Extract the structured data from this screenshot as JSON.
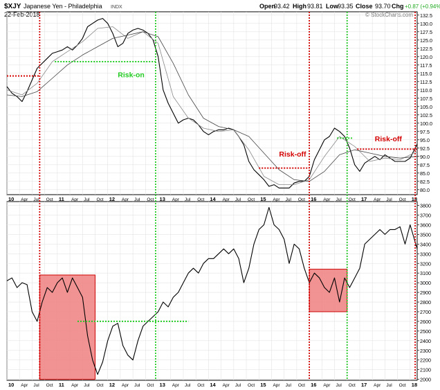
{
  "header": {
    "symbol": "$XJY",
    "name": "Japanese Yen - Philadelphia",
    "exchange": "INDX",
    "date": "22-Feb-2018",
    "open_label": "Open",
    "open": "93.42",
    "high_label": "High",
    "high": "93.81",
    "low_label": "Low",
    "low": "93.35",
    "close_label": "Close",
    "close": "93.70",
    "chg_label": "Chg",
    "chg": "+0.87 (+0.94%)",
    "watermark": "© StockCharts.com"
  },
  "colors": {
    "price": "#000000",
    "ma_short": "#888888",
    "ma_long": "#444444",
    "red_dotted": "#d40000",
    "green_dotted": "#22cc22",
    "shade_fill": "#f08080",
    "shade_stroke": "#cc0000",
    "annotation_green": "#22cc22",
    "annotation_red": "#d40000"
  },
  "chart_data": [
    {
      "type": "line",
      "panel": "top",
      "x_ticks": [
        "10",
        "Apr",
        "Jul",
        "Oct",
        "11",
        "Apr",
        "Jul",
        "Oct",
        "12",
        "Apr",
        "Jul",
        "Oct",
        "13",
        "Apr",
        "Jul",
        "Oct",
        "14",
        "Apr",
        "Jul",
        "Oct",
        "15",
        "Apr",
        "Jul",
        "Oct",
        "16",
        "Apr",
        "Jul",
        "Oct",
        "17",
        "Apr",
        "Jul",
        "Oct",
        "18"
      ],
      "y_ticks": [
        "132.5",
        "130.0",
        "127.5",
        "125.0",
        "122.5",
        "120.0",
        "117.5",
        "115.0",
        "112.5",
        "110.0",
        "107.5",
        "105.0",
        "102.5",
        "100.0",
        "97.5",
        "95.0",
        "92.5",
        "90.0",
        "87.5",
        "85.0",
        "82.5",
        "80.0"
      ],
      "ylim": [
        78.5,
        133.5
      ],
      "xlim": [
        2010.0,
        2018.14
      ],
      "series": [
        {
          "role": "price",
          "x": [
            2010.0,
            2010.1,
            2010.2,
            2010.3,
            2010.4,
            2010.5,
            2010.6,
            2010.7,
            2010.8,
            2010.9,
            2011.0,
            2011.1,
            2011.2,
            2011.3,
            2011.4,
            2011.5,
            2011.6,
            2011.7,
            2011.8,
            2011.9,
            2012.0,
            2012.1,
            2012.2,
            2012.3,
            2012.4,
            2012.5,
            2012.6,
            2012.7,
            2012.8,
            2012.9,
            2013.0,
            2013.1,
            2013.2,
            2013.3,
            2013.4,
            2013.5,
            2013.6,
            2013.7,
            2013.8,
            2013.9,
            2014.0,
            2014.1,
            2014.2,
            2014.3,
            2014.4,
            2014.5,
            2014.6,
            2014.7,
            2014.8,
            2014.9,
            2015.0,
            2015.1,
            2015.2,
            2015.3,
            2015.4,
            2015.5,
            2015.6,
            2015.7,
            2015.8,
            2015.9,
            2016.0,
            2016.1,
            2016.2,
            2016.3,
            2016.4,
            2016.5,
            2016.6,
            2016.7,
            2016.8,
            2016.9,
            2017.0,
            2017.1,
            2017.2,
            2017.3,
            2017.4,
            2017.5,
            2017.6,
            2017.7,
            2017.8,
            2017.9,
            2018.0,
            2018.14
          ],
          "y": [
            111.0,
            109.0,
            108.0,
            106.5,
            109.5,
            113.0,
            116.5,
            118.0,
            119.5,
            121.0,
            121.5,
            122.0,
            123.0,
            122.0,
            123.5,
            125.5,
            129.0,
            130.0,
            131.0,
            131.5,
            130.0,
            127.0,
            123.0,
            124.0,
            127.0,
            128.0,
            128.5,
            128.0,
            127.0,
            125.0,
            120.0,
            110.0,
            106.0,
            103.0,
            100.0,
            101.0,
            101.5,
            101.0,
            99.5,
            97.5,
            96.5,
            97.5,
            98.0,
            98.0,
            98.5,
            98.0,
            96.0,
            93.5,
            88.5,
            86.0,
            84.5,
            83.0,
            81.0,
            81.5,
            80.5,
            80.5,
            80.5,
            82.0,
            82.5,
            82.5,
            84.0,
            89.0,
            92.0,
            95.0,
            96.0,
            98.5,
            97.5,
            96.0,
            92.5,
            87.5,
            85.5,
            88.0,
            89.0,
            90.0,
            89.0,
            90.5,
            89.5,
            88.5,
            88.5,
            88.5,
            89.5,
            93.7
          ]
        },
        {
          "role": "ma_short",
          "x": [
            2010.0,
            2010.3,
            2010.6,
            2010.9,
            2011.2,
            2011.5,
            2011.8,
            2012.1,
            2012.4,
            2012.7,
            2013.0,
            2013.3,
            2013.6,
            2013.9,
            2014.2,
            2014.5,
            2014.8,
            2015.1,
            2015.4,
            2015.7,
            2016.0,
            2016.3,
            2016.6,
            2016.9,
            2017.2,
            2017.5,
            2017.8,
            2018.14
          ],
          "y": [
            110.0,
            108.5,
            112.0,
            118.5,
            121.5,
            124.5,
            128.5,
            129.0,
            125.5,
            127.5,
            124.0,
            108.0,
            101.5,
            98.5,
            97.5,
            98.0,
            92.0,
            84.0,
            81.5,
            81.5,
            83.0,
            90.0,
            96.0,
            93.0,
            88.5,
            89.5,
            89.0,
            91.5
          ]
        },
        {
          "role": "ma_long",
          "x": [
            2010.0,
            2010.3,
            2010.6,
            2010.9,
            2011.2,
            2011.5,
            2011.8,
            2012.1,
            2012.4,
            2012.7,
            2013.0,
            2013.3,
            2013.6,
            2013.9,
            2014.2,
            2014.5,
            2014.8,
            2015.1,
            2015.4,
            2015.7,
            2016.0,
            2016.3,
            2016.6,
            2016.9,
            2017.2,
            2017.5,
            2017.8,
            2018.14
          ],
          "y": [
            108.5,
            108.0,
            109.5,
            113.5,
            117.5,
            120.5,
            123.0,
            125.5,
            126.5,
            127.5,
            126.0,
            118.0,
            108.5,
            101.5,
            99.0,
            98.0,
            96.0,
            91.0,
            86.0,
            83.0,
            82.5,
            85.5,
            90.5,
            92.0,
            91.0,
            90.0,
            89.5,
            90.0
          ]
        }
      ],
      "levels": [
        {
          "kind": "red",
          "x0": 2010.0,
          "x1": 2010.65,
          "y": 114.2
        },
        {
          "kind": "green",
          "x0": 2010.95,
          "x1": 2012.95,
          "y": 118.5
        },
        {
          "kind": "red",
          "x0": 2015.0,
          "x1": 2016.0,
          "y": 86.5
        },
        {
          "kind": "green",
          "x0": 2016.55,
          "x1": 2016.85,
          "y": 95.5
        },
        {
          "kind": "red",
          "x0": 2016.95,
          "x1": 2018.14,
          "y": 92.2
        }
      ],
      "annotations": [
        {
          "text": "Risk-on",
          "kind": "green",
          "x": 2012.2,
          "y": 113.8
        },
        {
          "text": "Risk-off",
          "kind": "red",
          "x": 2015.4,
          "y": 90.0
        },
        {
          "text": "Risk-off",
          "kind": "red",
          "x": 2017.3,
          "y": 94.5
        }
      ]
    },
    {
      "type": "line",
      "panel": "bottom",
      "x_ticks": [
        "10",
        "Apr",
        "Jul",
        "Oct",
        "11",
        "Apr",
        "Jul",
        "Oct",
        "12",
        "Apr",
        "Jul",
        "Oct",
        "13",
        "Apr",
        "Jul",
        "Oct",
        "14",
        "Apr",
        "Jul",
        "Oct",
        "15",
        "Apr",
        "Jul",
        "Oct",
        "16",
        "Apr",
        "Jul",
        "Oct",
        "17",
        "Apr",
        "Jul",
        "Oct",
        "18"
      ],
      "y_ticks": [
        "3800",
        "3700",
        "3600",
        "3500",
        "3400",
        "3300",
        "3200",
        "3100",
        "3000",
        "2900",
        "2800",
        "2700",
        "2600",
        "2500",
        "2400",
        "2300",
        "2200",
        "2100",
        "2000"
      ],
      "ylim": [
        1990,
        3840
      ],
      "xlim": [
        2010.0,
        2018.14
      ],
      "series": [
        {
          "role": "price",
          "x": [
            2010.0,
            2010.1,
            2010.2,
            2010.3,
            2010.4,
            2010.5,
            2010.6,
            2010.7,
            2010.8,
            2010.9,
            2011.0,
            2011.1,
            2011.2,
            2011.3,
            2011.4,
            2011.5,
            2011.6,
            2011.7,
            2011.8,
            2011.9,
            2012.0,
            2012.1,
            2012.2,
            2012.3,
            2012.4,
            2012.5,
            2012.6,
            2012.7,
            2012.8,
            2012.9,
            2013.0,
            2013.1,
            2013.2,
            2013.3,
            2013.4,
            2013.5,
            2013.6,
            2013.7,
            2013.8,
            2013.9,
            2014.0,
            2014.1,
            2014.2,
            2014.3,
            2014.4,
            2014.5,
            2014.6,
            2014.7,
            2014.8,
            2014.9,
            2015.0,
            2015.1,
            2015.2,
            2015.3,
            2015.4,
            2015.5,
            2015.6,
            2015.7,
            2015.8,
            2015.9,
            2016.0,
            2016.1,
            2016.2,
            2016.3,
            2016.4,
            2016.5,
            2016.6,
            2016.7,
            2016.8,
            2016.9,
            2017.0,
            2017.1,
            2017.2,
            2017.3,
            2017.4,
            2017.5,
            2017.6,
            2017.7,
            2017.8,
            2017.9,
            2018.0,
            2018.14
          ],
          "y": [
            3020,
            3050,
            2950,
            3000,
            2980,
            2700,
            2600,
            2800,
            2950,
            2900,
            3000,
            3050,
            2900,
            3050,
            2950,
            2850,
            2450,
            2200,
            2050,
            2180,
            2400,
            2550,
            2580,
            2350,
            2250,
            2200,
            2400,
            2550,
            2600,
            2650,
            2700,
            2800,
            2750,
            2850,
            2900,
            3000,
            3100,
            3150,
            3100,
            3200,
            3250,
            3250,
            3300,
            3350,
            3300,
            3350,
            3250,
            3000,
            3150,
            3400,
            3550,
            3600,
            3780,
            3600,
            3550,
            3450,
            3200,
            3400,
            3350,
            3150,
            3000,
            3100,
            3050,
            2950,
            2900,
            3050,
            2800,
            3050,
            2950,
            3050,
            3150,
            3400,
            3450,
            3500,
            3550,
            3500,
            3550,
            3550,
            3580,
            3400,
            3600,
            3350
          ]
        }
      ],
      "levels": [
        {
          "kind": "green",
          "x0": 2011.4,
          "x1": 2013.6,
          "y": 2600
        }
      ],
      "shaded_regions": [
        {
          "x0": 2010.65,
          "x1": 2011.75,
          "y0": 2000,
          "y1": 3080
        },
        {
          "x0": 2016.0,
          "x1": 2016.75,
          "y0": 2700,
          "y1": 3140
        }
      ]
    }
  ],
  "vlines": [
    {
      "kind": "red",
      "x": 2010.65
    },
    {
      "kind": "green",
      "x": 2012.95
    },
    {
      "kind": "red",
      "x": 2016.0
    },
    {
      "kind": "green",
      "x": 2016.75
    },
    {
      "kind": "red",
      "x": 2018.1
    }
  ]
}
